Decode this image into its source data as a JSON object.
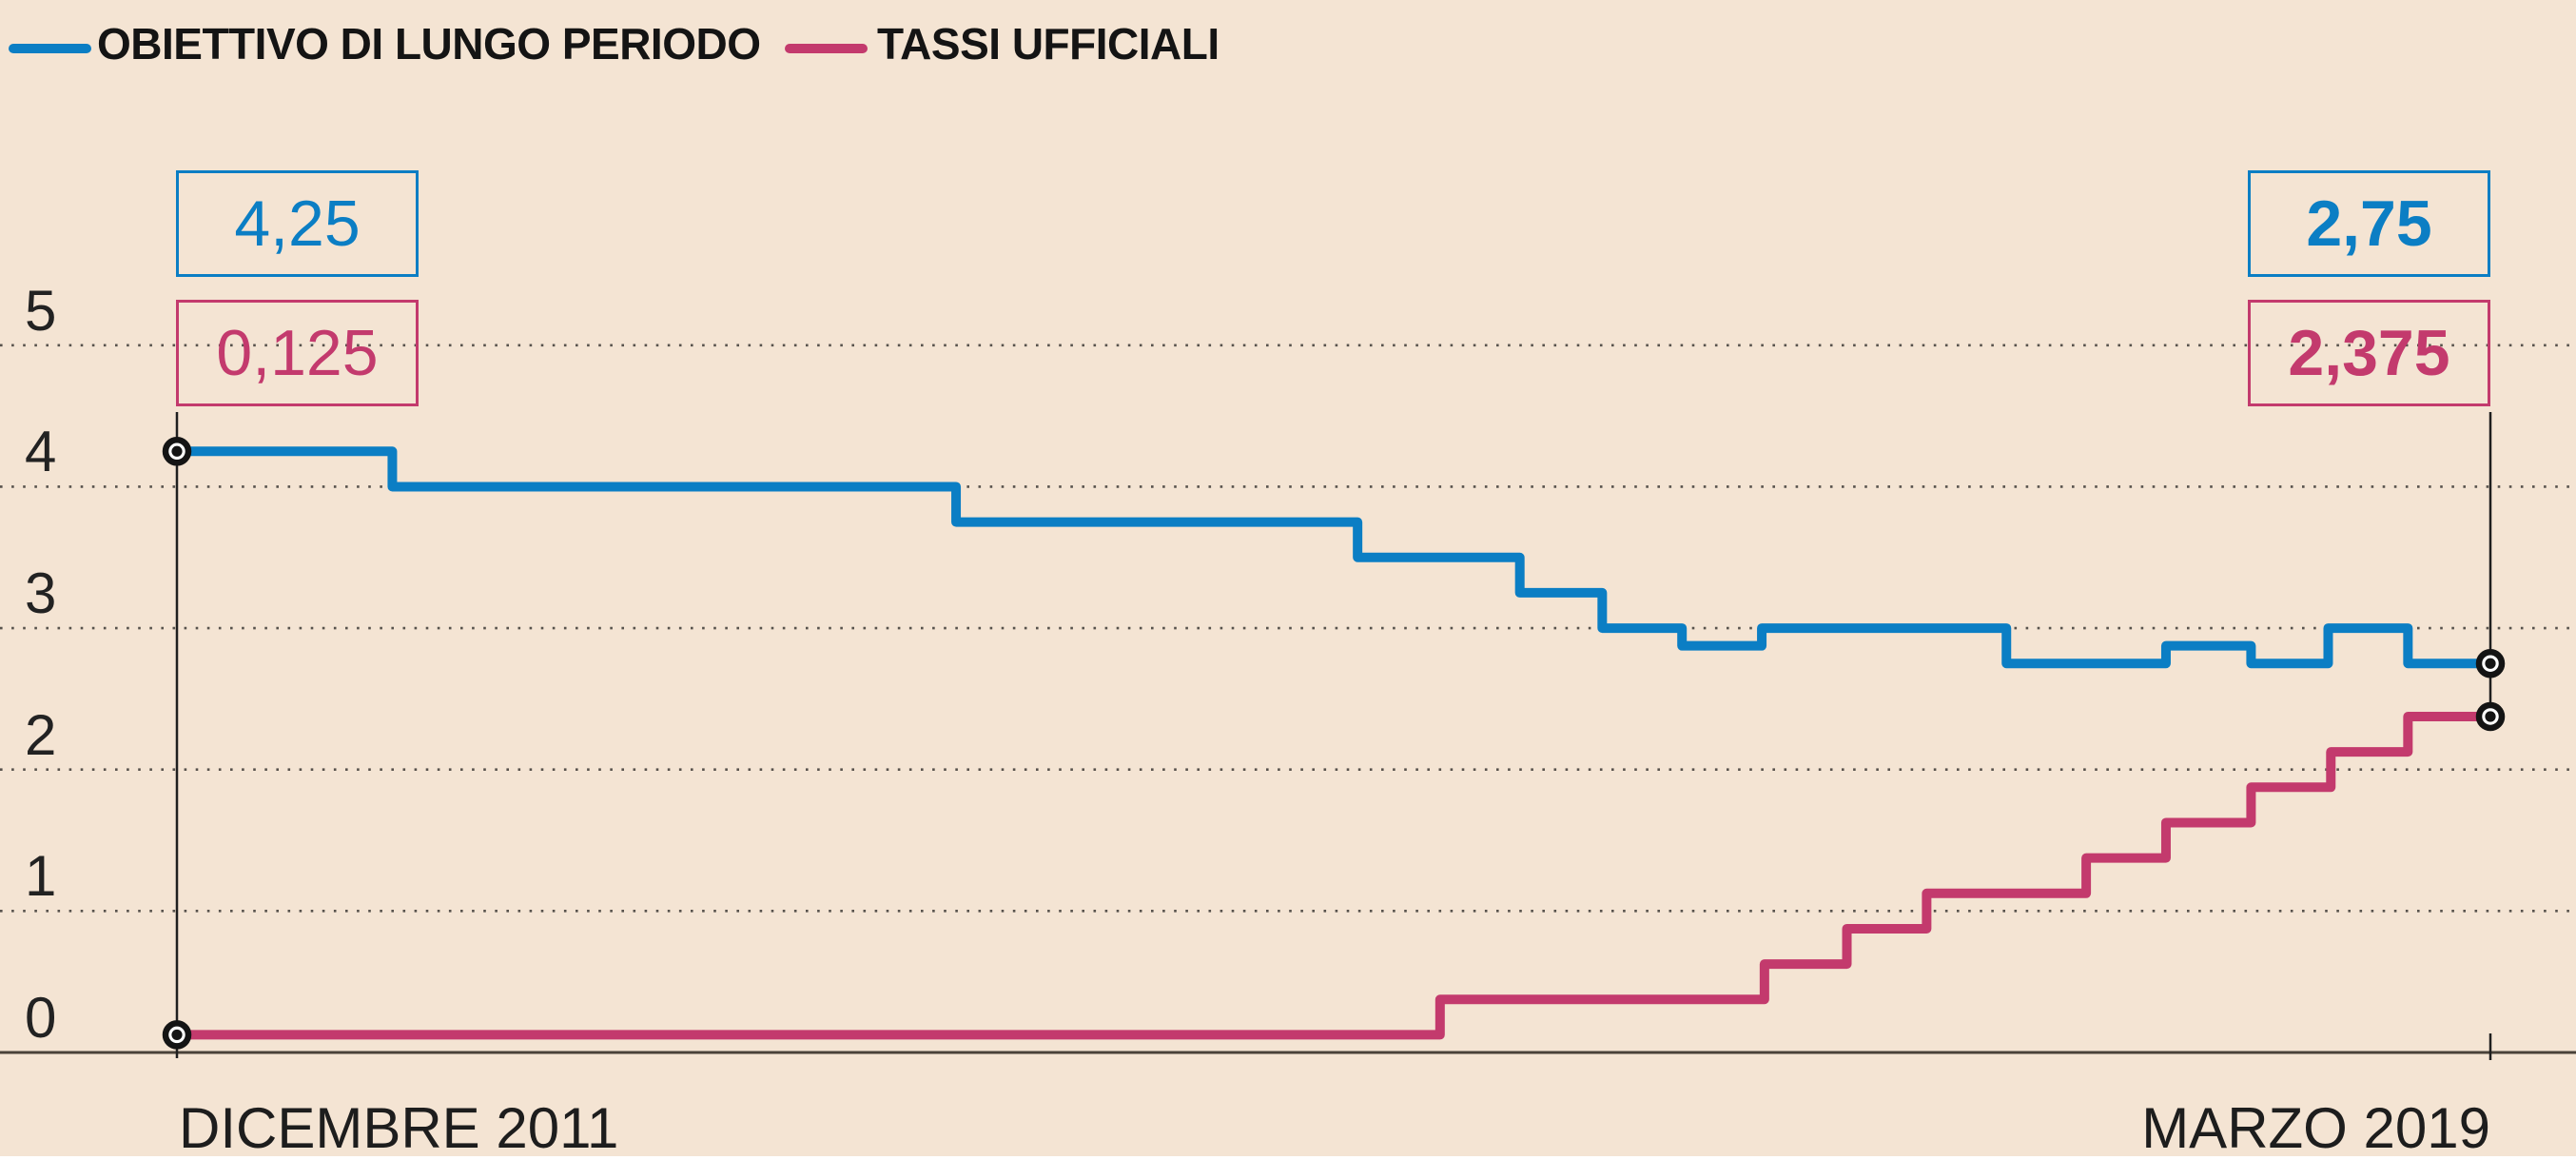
{
  "legend": [
    {
      "label": "OBIETTIVO DI LUNGO PERIODO",
      "color": "#0b7ec4"
    },
    {
      "label": "TASSI UFFICIALI",
      "color": "#c33a6d"
    }
  ],
  "annotations": {
    "start_target": "4,25",
    "start_rate": "0,125",
    "end_target": "2,75",
    "end_rate": "2,375"
  },
  "y_axis": {
    "ticks": [
      "5",
      "4",
      "3",
      "2",
      "1",
      "0"
    ],
    "grid_values": [
      5,
      4,
      3,
      2,
      1
    ],
    "baseline_value": 0
  },
  "x_axis": {
    "start_label": "DICEMBRE 2011",
    "end_label": "MARZO 2019"
  },
  "colors": {
    "background": "#f4e4d3",
    "target_blue": "#0b7ec4",
    "rates_pink": "#c33a6d",
    "grid_dots": "#57524c",
    "baseline": "#494239",
    "guide_lines": "#1f1f1f",
    "text": "#1d1d1d"
  },
  "chart_data": {
    "type": "line",
    "step_style": "post",
    "ylim": [
      0,
      5
    ],
    "grid": "dotted-horizontal",
    "x_start_label": "DICEMBRE 2011",
    "x_end_label": "MARZO 2019",
    "months_total": 87,
    "series": [
      {
        "name": "OBIETTIVO DI LUNGO PERIODO",
        "color": "#0b7ec4",
        "start_value": 4.25,
        "end_value": 2.75,
        "steps_months_from_start": [
          [
            0,
            4.25
          ],
          [
            8.1,
            4.0
          ],
          [
            29.3,
            3.75
          ],
          [
            44.4,
            3.5
          ],
          [
            50.5,
            3.25
          ],
          [
            53.6,
            3.0
          ],
          [
            56.6,
            2.875
          ],
          [
            59.6,
            3.0
          ],
          [
            68.8,
            2.75
          ],
          [
            74.8,
            2.875
          ],
          [
            78.0,
            2.75
          ],
          [
            80.9,
            3.0
          ],
          [
            83.9,
            2.75
          ]
        ]
      },
      {
        "name": "TASSI UFFICIALI",
        "color": "#c33a6d",
        "start_value": 0.125,
        "end_value": 2.375,
        "steps_months_from_start": [
          [
            0,
            0.125
          ],
          [
            47.5,
            0.375
          ],
          [
            59.7,
            0.625
          ],
          [
            62.8,
            0.875
          ],
          [
            65.8,
            1.125
          ],
          [
            71.8,
            1.375
          ],
          [
            74.8,
            1.625
          ],
          [
            78.0,
            1.875
          ],
          [
            81.0,
            2.125
          ],
          [
            83.9,
            2.375
          ]
        ]
      }
    ]
  }
}
